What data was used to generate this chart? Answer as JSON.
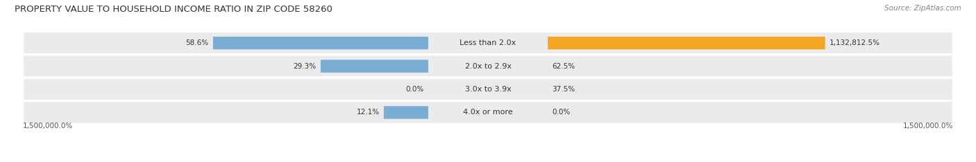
{
  "title": "PROPERTY VALUE TO HOUSEHOLD INCOME RATIO IN ZIP CODE 58260",
  "source": "Source: ZipAtlas.com",
  "categories": [
    "Less than 2.0x",
    "2.0x to 2.9x",
    "3.0x to 3.9x",
    "4.0x or more"
  ],
  "without_mortgage": [
    58.6,
    29.3,
    0.0,
    12.1
  ],
  "with_mortgage": [
    1132812.5,
    62.5,
    37.5,
    0.0
  ],
  "without_mortgage_labels": [
    "58.6%",
    "29.3%",
    "0.0%",
    "12.1%"
  ],
  "with_mortgage_labels": [
    "1,132,812.5%",
    "62.5%",
    "37.5%",
    "0.0%"
  ],
  "color_without": "#7aadd4",
  "color_with_strong": "#f5a623",
  "color_with_light": "#f7c98a",
  "row_bg_color": "#ebebeb",
  "title_color": "#333333",
  "source_color": "#888888",
  "max_value": 1500000.0,
  "without_max": 100.0,
  "x_axis_left_label": "1,500,000.0%",
  "x_axis_right_label": "1,500,000.0%",
  "title_fontsize": 9.5,
  "label_fontsize": 7.5,
  "category_fontsize": 8,
  "source_fontsize": 7.5
}
